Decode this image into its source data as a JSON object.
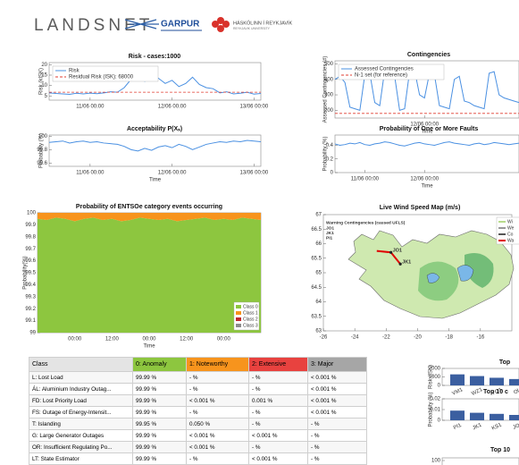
{
  "header": {
    "brand": "LANDSNET",
    "project": "GARPUR",
    "university": "HÁSKÓLINN Í REYKJAVÍK",
    "university_en": "REYKJAVIK UNIVERSITY"
  },
  "chart_data": [
    {
      "type": "line",
      "title": "Risk - cases:1000",
      "ylabel": "Risk (kISK)",
      "series": [
        {
          "name": "Risk",
          "color": "#4a90e2",
          "values": [
            6.5,
            6.2,
            6,
            5.8,
            6.3,
            6,
            6.4,
            6.1,
            6.5,
            7,
            6.8,
            9,
            13,
            14.5,
            12,
            15,
            13.5,
            11,
            12.5,
            9.5,
            11,
            14,
            10.5,
            9,
            8.5,
            6.5,
            7,
            6,
            6.3,
            6.8,
            5.9,
            6.2
          ]
        }
      ],
      "reference_line": {
        "name": "Residual Risk (ISK): 68000",
        "value": 6.8,
        "color": "#e03c31"
      },
      "xlim": [
        0,
        31
      ],
      "xticks": [
        {
          "value": 6,
          "label": "11/06 00:00"
        },
        {
          "value": 18,
          "label": "12/06 00:00"
        },
        {
          "value": 30,
          "label": "13/06 00:00"
        }
      ],
      "ylim": [
        3,
        21
      ],
      "yticks": [
        5,
        10,
        15,
        20
      ]
    },
    {
      "type": "line",
      "title": "Acceptability P(Xₛ)",
      "ylabel": "Probability (%)",
      "xlabel": "Time",
      "series": [
        {
          "name": "Acceptability",
          "color": "#4a90e2",
          "values": [
            99.91,
            99.92,
            99.93,
            99.9,
            99.92,
            99.93,
            99.91,
            99.92,
            99.9,
            99.89,
            99.88,
            99.85,
            99.8,
            99.78,
            99.82,
            99.79,
            99.84,
            99.86,
            99.83,
            99.88,
            99.85,
            99.8,
            99.84,
            99.88,
            99.9,
            99.92,
            99.91,
            99.93,
            99.92,
            99.94,
            99.93,
            99.92
          ]
        }
      ],
      "xlim": [
        0,
        31
      ],
      "xticks": [
        {
          "value": 6,
          "label": "11/06 00:00"
        },
        {
          "value": 18,
          "label": "12/06 00:00"
        },
        {
          "value": 30,
          "label": "13/06 00:00"
        }
      ],
      "ylim": [
        99.55,
        100.02
      ],
      "yticks": [
        99.6,
        99.8,
        100
      ]
    },
    {
      "type": "line",
      "title": "Contingencies",
      "ylabel": "Assessed Contingencies (#)",
      "xlabel": "Time",
      "series": [
        {
          "name": "Assessed Contingencies",
          "color": "#4a90e2",
          "values": [
            400,
            420,
            380,
            220,
            210,
            200,
            430,
            440,
            250,
            230,
            460,
            470,
            420,
            200,
            210,
            450,
            460,
            300,
            280,
            440,
            430,
            230,
            220,
            210,
            400,
            420,
            260,
            250,
            230,
            220,
            210,
            440,
            450,
            300,
            280,
            270,
            260,
            250
          ]
        }
      ],
      "reference_line": {
        "name": "N-1 set (for reference)",
        "value": 180,
        "color": "#e03c31"
      },
      "xlim": [
        0,
        37
      ],
      "xticks": [
        {
          "value": 18,
          "label": "12/06 00:00"
        }
      ],
      "ylim": [
        150,
        520
      ],
      "yticks": [
        200,
        300,
        400,
        500
      ]
    },
    {
      "type": "line",
      "title": "Probability of One or More Faults",
      "ylabel": "Probability (%)",
      "xlabel": "Time",
      "series": [
        {
          "name": "Faults",
          "color": "#4a90e2",
          "values": [
            0.42,
            0.4,
            0.41,
            0.43,
            0.42,
            0.44,
            0.41,
            0.4,
            0.42,
            0.43,
            0.45,
            0.44,
            0.42,
            0.4,
            0.39,
            0.41,
            0.43,
            0.44,
            0.42,
            0.41,
            0.4,
            0.42,
            0.44,
            0.45,
            0.43,
            0.42,
            0.41,
            0.4,
            0.42,
            0.43,
            0.41,
            0.42,
            0.44,
            0.43,
            0.42,
            0.41,
            0.42,
            0.43
          ]
        }
      ],
      "xlim": [
        0,
        37
      ],
      "xticks": [
        {
          "value": 6,
          "label": "11/06 00:00"
        },
        {
          "value": 18,
          "label": "12/06 00:00"
        }
      ],
      "ylim": [
        0,
        0.55
      ],
      "yticks": [
        0,
        0.2,
        0.4
      ]
    },
    {
      "type": "area",
      "title": "Probability of ENTSOe category events occurring",
      "ylabel": "Probability(%)",
      "xlabel": "Time",
      "series": [
        {
          "name": "Class 0",
          "color": "#8dc63f",
          "values": [
            99.95,
            99.94,
            99.96,
            99.95,
            99.93,
            99.95,
            99.96,
            99.94,
            99.95,
            99.93,
            99.94,
            99.96,
            99.95,
            99.94,
            99.95,
            99.93,
            99.94,
            99.95,
            99.96,
            99.94,
            99.95,
            99.94,
            99.96,
            99.95,
            99.94
          ]
        },
        {
          "name": "Class 1",
          "color": "#f7941d",
          "values": [
            0.05,
            0.06,
            0.04,
            0.05,
            0.07,
            0.05,
            0.04,
            0.06,
            0.05,
            0.07,
            0.06,
            0.04,
            0.05,
            0.06,
            0.05,
            0.07,
            0.06,
            0.05,
            0.04,
            0.06,
            0.05,
            0.06,
            0.04,
            0.05,
            0.06
          ]
        },
        {
          "name": "Class 2",
          "color": "#c0272d",
          "values": [
            0,
            0,
            0,
            0,
            0,
            0,
            0,
            0,
            0,
            0,
            0,
            0,
            0,
            0,
            0,
            0,
            0,
            0,
            0,
            0,
            0,
            0,
            0,
            0,
            0
          ]
        },
        {
          "name": "Class 3",
          "color": "#8c8c8c",
          "values": [
            0,
            0,
            0,
            0,
            0,
            0,
            0,
            0,
            0,
            0,
            0,
            0,
            0,
            0,
            0,
            0,
            0,
            0,
            0,
            0,
            0,
            0,
            0,
            0,
            0
          ]
        }
      ],
      "xlim": [
        0,
        24
      ],
      "xticks": [
        {
          "value": 4,
          "label": "00:00"
        },
        {
          "value": 8,
          "label": "12:00"
        },
        {
          "value": 12,
          "label": "00:00"
        },
        {
          "value": 16,
          "label": "12:00"
        },
        {
          "value": 20,
          "label": "00:00"
        }
      ],
      "ylim": [
        99,
        100
      ],
      "yticks": [
        99,
        99.1,
        99.2,
        99.3,
        99.4,
        99.5,
        99.6,
        99.7,
        99.8,
        99.9,
        100
      ]
    },
    {
      "type": "map",
      "title": "Live Wind Speed Map (m/s)",
      "warning_title": "Warning Contingencies (caused UFLS)",
      "warnings": [
        "JO1",
        "JK1",
        "PI1"
      ],
      "markers": [
        {
          "label": "JO1",
          "lon": -21.7,
          "lat": 65.7
        },
        {
          "label": "JK1",
          "lon": -21.1,
          "lat": 65.3
        }
      ],
      "warning_line": {
        "color": "#e00000",
        "lon": [
          -22.6,
          -21.7,
          -21.1
        ],
        "lat": [
          65.75,
          65.7,
          65.3
        ]
      },
      "legend": [
        {
          "name": "Wi",
          "color": "#b8dc8c"
        },
        {
          "name": "We",
          "color": "#999999"
        },
        {
          "name": "Co",
          "color": "#555555"
        },
        {
          "name": "Wa",
          "color": "#e00000"
        }
      ],
      "xlim": [
        -26,
        -14
      ],
      "xticks": [
        -26,
        -24,
        -22,
        -20,
        -18,
        -16
      ],
      "ylim": [
        63,
        67
      ],
      "yticks": [
        63,
        63.5,
        64,
        64.5,
        65,
        65.5,
        66,
        66.5,
        67
      ]
    },
    {
      "type": "bar",
      "title": "Top",
      "ylabel": "Risk (ISK)",
      "color": "#3b5fa0",
      "categories": [
        "VM1",
        "WZ1",
        "YO1",
        "Ol"
      ],
      "values": [
        1300,
        1100,
        900,
        750
      ],
      "ylim": [
        0,
        2000
      ],
      "yticks": [
        0,
        1000,
        2000
      ]
    },
    {
      "type": "bar",
      "title": "Top 10 c",
      "ylabel": "Probability (%)",
      "color": "#3b5fa0",
      "categories": [
        "PI1",
        "JK1",
        "KS1",
        "JO"
      ],
      "values": [
        0.009,
        0.007,
        0.006,
        0.005
      ],
      "ylim": [
        0,
        0.02
      ],
      "yticks": [
        0,
        0.01,
        0.02
      ]
    },
    {
      "type": "bar",
      "title": "Top 10",
      "ylabel": "(MW)",
      "color": "#3b5fa0",
      "categories": [],
      "values": [],
      "ylim": [
        0,
        110
      ],
      "yticks": [
        100
      ]
    }
  ],
  "table": {
    "header": [
      "Class",
      "0: Anomaly",
      "1: Noteworthy",
      "2: Extensive",
      "3: Major"
    ],
    "header_colors": [
      "#e4e4e4",
      "#8dc63f",
      "#f7941d",
      "#e8423f",
      "#a6a6a6"
    ],
    "rows": [
      [
        "L: Lost Load",
        "99.99 %",
        "- %",
        "- %",
        "< 0.001 %"
      ],
      [
        "ÁL: Aluminium Industry Outag...",
        "99.99 %",
        "- %",
        "- %",
        "< 0.001 %"
      ],
      [
        "FD: Lost Priority Load",
        "99.99 %",
        "< 0.001 %",
        "0.001 %",
        "< 0.001 %"
      ],
      [
        "FS: Outage of Energy-Intensit...",
        "99.99 %",
        "- %",
        "- %",
        "< 0.001 %"
      ],
      [
        "T: Islanding",
        "99.95 %",
        "0.050 %",
        "- %",
        "- %"
      ],
      [
        "G: Large Generator Outages",
        "99.99 %",
        "< 0.001 %",
        "< 0.001 %",
        "- %"
      ],
      [
        "OR: Insufficient Regulating Po...",
        "99.99 %",
        "< 0.001 %",
        "- %",
        "- %"
      ],
      [
        "LT: State Estimator",
        "99.99 %",
        "- %",
        "< 0.001 %",
        "- %"
      ]
    ]
  }
}
